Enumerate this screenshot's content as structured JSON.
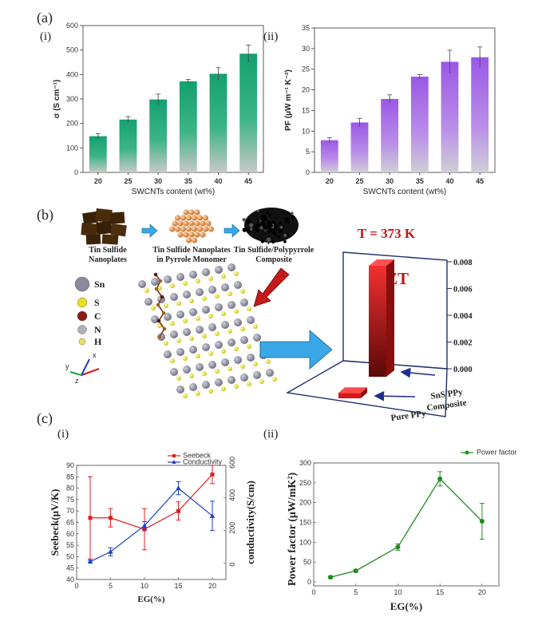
{
  "panel_labels": {
    "a": "(a)",
    "a_i": "(i)",
    "a_ii": "(ii)",
    "b": "(b)",
    "c": "(c)",
    "c_i": "(i)",
    "c_ii": "(ii)"
  },
  "colors": {
    "green": "#1a9a6a",
    "purple": "#9b5fe0",
    "red": "#e02020",
    "blue": "#1f3fbf",
    "pf_green": "#1e8c1e",
    "zt_red": "#d81818",
    "arrow_blue": "#3aa7e6"
  },
  "chart_data": [
    {
      "id": "a-i",
      "type": "bar",
      "categories": [
        "20",
        "25",
        "30",
        "35",
        "40",
        "45"
      ],
      "values": [
        148,
        216,
        298,
        372,
        403,
        485
      ],
      "errors": [
        10,
        12,
        22,
        8,
        25,
        35
      ],
      "xlabel": "SWCNTs content (wt%)",
      "ylabel": "σ (S cm⁻¹)",
      "ylim": [
        0,
        600
      ],
      "yticks": [
        0,
        100,
        200,
        300,
        400,
        500,
        600
      ]
    },
    {
      "id": "a-ii",
      "type": "bar",
      "categories": [
        "20",
        "25",
        "30",
        "35",
        "40",
        "45"
      ],
      "values": [
        7.8,
        12.1,
        17.8,
        23.2,
        26.8,
        27.9
      ],
      "errors": [
        0.6,
        1.0,
        1.0,
        0.5,
        2.8,
        2.5
      ],
      "xlabel": "SWCNTs content (wt%)",
      "ylabel": "PF (μW m⁻¹ K⁻²)",
      "ylim": [
        0,
        35
      ],
      "yticks": [
        0,
        5,
        10,
        15,
        20,
        25,
        30,
        35
      ]
    },
    {
      "id": "b-zt",
      "type": "bar",
      "title": "T = 373 K",
      "label": "ZT",
      "categories": [
        "SnS/PPy Composite",
        "Pure PPy"
      ],
      "values": [
        0.0083,
        0.0004
      ],
      "zticks": [
        "0.000",
        "0.002",
        "0.004",
        "0.006",
        "0.008"
      ]
    },
    {
      "id": "c-i",
      "type": "line",
      "xlabel": "EG(%)",
      "ylabel": "Seebeck(μV/K)",
      "y2label": "conductivity(S/cm)",
      "xlim": [
        0,
        22
      ],
      "ylim": [
        40,
        90
      ],
      "y2lim": [
        -100,
        600
      ],
      "xticks": [
        0,
        5,
        10,
        15,
        20
      ],
      "yticks": [
        40,
        45,
        50,
        55,
        60,
        65,
        70,
        75,
        80,
        85,
        90
      ],
      "y2ticks": [
        0,
        200,
        400,
        600
      ],
      "series": [
        {
          "name": "Seebeck",
          "axis": "left",
          "x": [
            2,
            5,
            10,
            15,
            20
          ],
          "y": [
            67,
            67,
            62,
            70,
            86
          ],
          "err": [
            18,
            4,
            9,
            4,
            4
          ]
        },
        {
          "name": "Conductivity",
          "axis": "right",
          "x": [
            2,
            5,
            10,
            15,
            20
          ],
          "y": [
            10,
            70,
            230,
            460,
            290
          ],
          "err": [
            8,
            25,
            25,
            40,
            90
          ]
        }
      ]
    },
    {
      "id": "c-ii",
      "type": "line",
      "xlabel": "EG(%)",
      "ylabel": "Power factor (μW/mK²)",
      "xlim": [
        0,
        22
      ],
      "ylim": [
        -10,
        300
      ],
      "xticks": [
        0,
        5,
        10,
        15,
        20
      ],
      "yticks": [
        0,
        50,
        100,
        150,
        200,
        250,
        300
      ],
      "series": [
        {
          "name": "Power factor",
          "x": [
            2,
            5,
            10,
            15,
            20
          ],
          "y": [
            12,
            28,
            88,
            260,
            153
          ],
          "err": [
            3,
            3,
            8,
            18,
            45
          ]
        }
      ]
    }
  ],
  "diagram": {
    "step1": [
      "Tin Sulfide",
      "Nanoplates"
    ],
    "step2": [
      "Tin Sulfide Nanoplates",
      "in Pyrrole Monomer"
    ],
    "step3": [
      "Tin Sulfide/Polypyrrole",
      "Composite"
    ],
    "legend": [
      "Sn",
      "S",
      "C",
      "N",
      "H"
    ],
    "legend_colors": [
      "#8a8a9a",
      "#e8e020",
      "#8b1a1a",
      "#b0b0b8",
      "#e8e060"
    ],
    "axes": [
      "y",
      "x",
      "z"
    ]
  }
}
